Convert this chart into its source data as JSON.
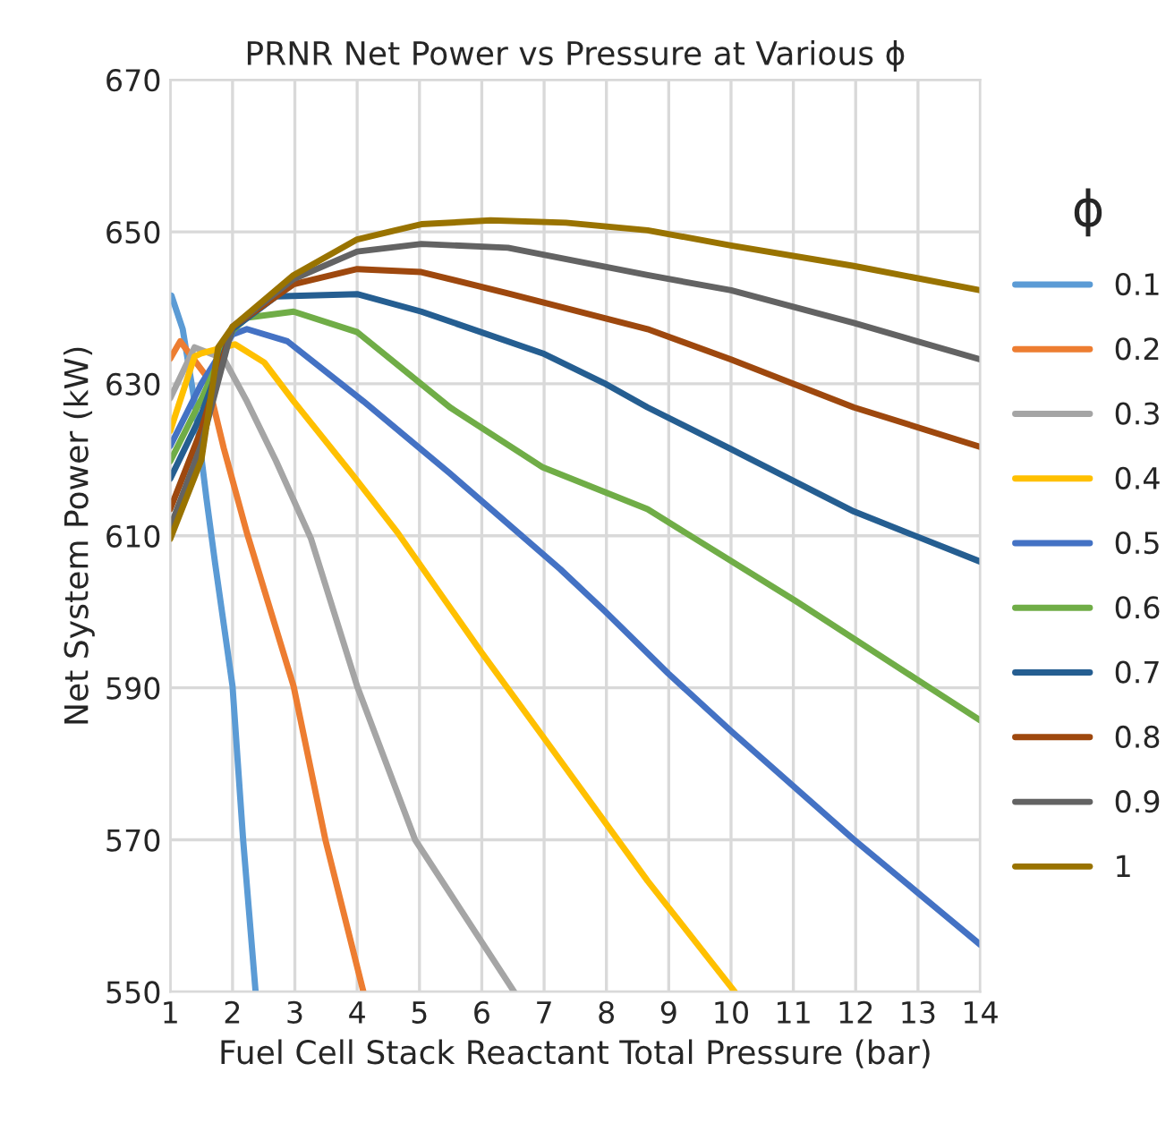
{
  "chart_data": {
    "type": "line",
    "title": "PRNR Net Power vs Pressure at Various ϕ",
    "xlabel": "Fuel Cell Stack Reactant Total Pressure (bar)",
    "ylabel": "Net System Power (kW)",
    "legend_title": "ϕ",
    "xlim": [
      1,
      14
    ],
    "ylim": [
      550,
      670
    ],
    "xticks": [
      1,
      2,
      3,
      4,
      5,
      6,
      7,
      8,
      9,
      10,
      11,
      12,
      13,
      14
    ],
    "yticks": [
      550,
      570,
      590,
      610,
      630,
      650,
      670
    ],
    "grid": true,
    "legend": "right",
    "marker": "none",
    "line_style": "solid",
    "series": [
      {
        "name": "0.1",
        "color": "#5b9bd5",
        "x": [
          1,
          1.02,
          1.2,
          1.39,
          1.58,
          1.72,
          2.0,
          2.17,
          2.37
        ],
        "values": [
          641,
          641.6,
          637.2,
          627.7,
          615,
          606.4,
          590.2,
          570,
          550
        ]
      },
      {
        "name": "0.2",
        "color": "#ed7d31",
        "x": [
          1,
          1.16,
          1.58,
          1.86,
          2.23,
          2.98,
          3.49,
          4.1
        ],
        "values": [
          633.3,
          635.6,
          631,
          621.5,
          610.4,
          590.2,
          570,
          550
        ]
      },
      {
        "name": "0.3",
        "color": "#a5a5a5",
        "x": [
          1,
          1.39,
          1.86,
          2.23,
          2.7,
          3.26,
          4.0,
          4.93,
          6.52
        ],
        "values": [
          628.1,
          634.8,
          633.3,
          627.7,
          619.8,
          609.6,
          590.2,
          570,
          550
        ]
      },
      {
        "name": "0.4",
        "color": "#ffc000",
        "x": [
          1,
          1.39,
          1.5,
          2.04,
          2.51,
          2.98,
          3.91,
          4.65,
          6.0,
          6.98,
          8.66,
          10.06
        ],
        "values": [
          623.8,
          633.6,
          634,
          635.2,
          632.8,
          627.7,
          618.2,
          610.4,
          594.6,
          583.6,
          564.6,
          550
        ]
      },
      {
        "name": "0.5",
        "color": "#4472c4",
        "x": [
          1,
          1.5,
          2.0,
          2.23,
          2.88,
          4.1,
          5.49,
          7.26,
          7.96,
          8.99,
          10.0,
          11.96,
          14
        ],
        "values": [
          621.8,
          630,
          636.5,
          637.2,
          635.6,
          627.7,
          618.2,
          605.6,
          600.2,
          591.9,
          584.3,
          570.1,
          556.2
        ]
      },
      {
        "name": "0.6",
        "color": "#70ad47",
        "x": [
          1,
          1.5,
          2.0,
          2.23,
          2.98,
          4.0,
          5.49,
          6.98,
          8.66,
          9.27,
          11.04,
          13,
          14
        ],
        "values": [
          619.8,
          628,
          637,
          638.7,
          639.5,
          636.8,
          626.9,
          619,
          613.5,
          610.4,
          601.4,
          591,
          585.7
        ]
      },
      {
        "name": "0.7",
        "color": "#255e91",
        "x": [
          1,
          1.5,
          2.0,
          2.7,
          4.0,
          5.03,
          6.98,
          7.96,
          8.66,
          10.0,
          11.97,
          14
        ],
        "values": [
          617.5,
          626,
          637.2,
          641.5,
          641.8,
          639.5,
          634,
          630.1,
          626.9,
          621.4,
          613.2,
          606.6
        ]
      },
      {
        "name": "0.8",
        "color": "#9e480e",
        "x": [
          1,
          1.5,
          2.0,
          2.98,
          4.0,
          5.03,
          6.42,
          8.66,
          10.0,
          11.97,
          14
        ],
        "values": [
          613.5,
          624,
          637.5,
          643.1,
          645.1,
          644.7,
          641.9,
          637.2,
          633.2,
          626.9,
          621.7
        ]
      },
      {
        "name": "0.9",
        "color": "#636363",
        "x": [
          1,
          1.5,
          2.0,
          2.98,
          4.0,
          5.03,
          6.42,
          8.66,
          10.0,
          11.97,
          14
        ],
        "values": [
          611.1,
          622,
          637.5,
          643.8,
          647.4,
          648.4,
          647.9,
          644.3,
          642.3,
          638,
          633.2
        ]
      },
      {
        "name": "1",
        "color": "#997300",
        "x": [
          1,
          1.5,
          1.77,
          2.0,
          2.98,
          4.0,
          5.03,
          6.14,
          7.35,
          8.66,
          10.0,
          11.97,
          14
        ],
        "values": [
          609.6,
          620,
          634.8,
          637.5,
          644.3,
          649,
          651,
          651.5,
          651.2,
          650.2,
          648.2,
          645.5,
          642.3
        ]
      }
    ]
  }
}
